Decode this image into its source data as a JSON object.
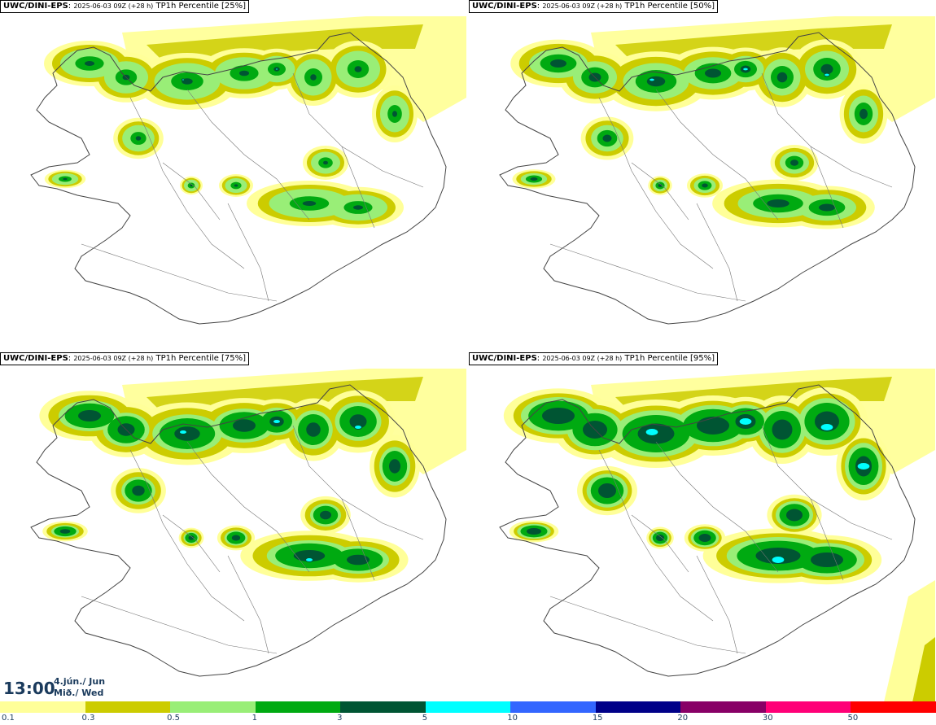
{
  "panels": [
    {
      "model": "UWC/DINI-EPS",
      "meta": "2025-06-03 09Z (+28 h)",
      "field": "TP1h Percentile [25%]"
    },
    {
      "model": "UWC/DINI-EPS",
      "meta": "2025-06-03 09Z (+28 h)",
      "field": "TP1h Percentile [50%]"
    },
    {
      "model": "UWC/DINI-EPS",
      "meta": "2025-06-03 09Z (+28 h)",
      "field": "TP1h Percentile [75%]"
    },
    {
      "model": "UWC/DINI-EPS",
      "meta": "2025-06-03 09Z (+28 h)",
      "field": "TP1h Percentile [95%]"
    }
  ],
  "time": {
    "clock": "13:00",
    "date_line1": "4.jún./ Jun",
    "date_line2": "Mið./ Wed"
  },
  "legend": {
    "ticks": [
      "0.1",
      "0.3",
      "0.5",
      "1",
      "3",
      "5",
      "10",
      "15",
      "20",
      "30",
      "50"
    ],
    "colors": [
      "#ffff99",
      "#cccc00",
      "#99ee77",
      "#00aa11",
      "#005533",
      "#00ffff",
      "#3366ff",
      "#000088",
      "#880066",
      "#ff0077",
      "#ff0000"
    ]
  },
  "colors": {
    "land": "#ffffff",
    "coast": "#444444",
    "light": "#ffff99",
    "olive": "#cccc00",
    "lightgreen": "#99ee77",
    "green": "#00aa11",
    "darkgreen": "#005533",
    "cyan": "#00ffff"
  }
}
